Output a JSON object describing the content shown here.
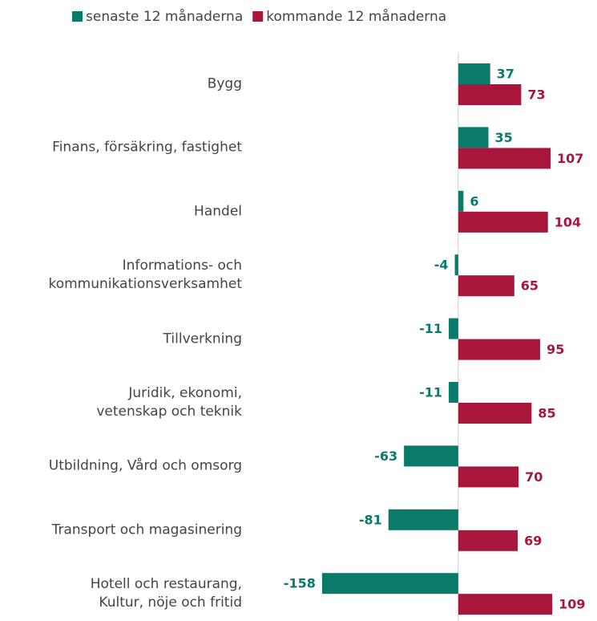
{
  "chart_data": {
    "type": "bar",
    "orientation": "horizontal",
    "categories": [
      "Bygg",
      "Finans, försäkring, fastighet",
      "Handel",
      "Informations- och\nkommunikationsverksamhet",
      "Tillverkning",
      "Juridik, ekonomi,\nvetenskap och teknik",
      "Utbildning, Vård och omsorg",
      "Transport och magasinering",
      "Hotell och restaurang,\nKultur, nöje och fritid"
    ],
    "series": [
      {
        "name": "senaste 12 månaderna",
        "color": "#0b7a6b",
        "values": [
          37,
          35,
          6,
          -4,
          -11,
          -11,
          -63,
          -81,
          -158
        ]
      },
      {
        "name": "kommande 12 månaderna",
        "color": "#a8173b",
        "values": [
          73,
          107,
          104,
          65,
          95,
          85,
          70,
          69,
          109
        ]
      }
    ],
    "xlim": [
      -170,
      160
    ],
    "legend": "top"
  }
}
